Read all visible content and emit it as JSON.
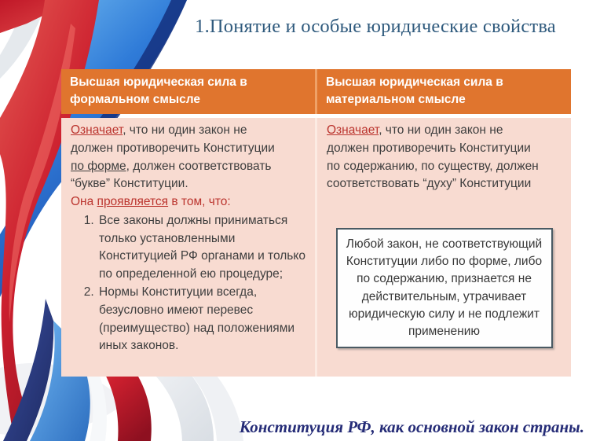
{
  "slide": {
    "title": "1.Понятие и особые юридические свойства",
    "footer": "Конституция РФ, как основной закон страны."
  },
  "colors": {
    "header_bg": "#E0752E",
    "body_bg": "#F8DBD1",
    "accent_red": "#BB342E",
    "title_blue": "#2F5A7D",
    "footer_navy": "#252C77"
  },
  "table": {
    "headers": [
      "Высшая юридическая сила в формальном смысле",
      "Высшая юридическая сила в материальном смысле"
    ],
    "left_cell": {
      "intro_runs": [
        {
          "text": "Означает",
          "style": "red underline"
        },
        {
          "text": ", что ни один закон не должен противоречить Конституции ",
          "style": ""
        },
        {
          "text": "по форме",
          "style": "underline"
        },
        {
          "text": ", должен соответствовать “букве” Конституции.",
          "style": ""
        }
      ],
      "lead_runs": [
        {
          "text": "Она ",
          "style": "red"
        },
        {
          "text": "проявляется",
          "style": "red underline"
        },
        {
          "text": " в том, что:",
          "style": "red"
        }
      ],
      "items": [
        "Все законы должны приниматься только установленными Конституцией РФ органами и только по определенной ею процедуре;",
        "Нормы Конституции всегда, безусловно имеют перевес (преимущество) над положениями иных законов."
      ]
    },
    "right_cell": {
      "intro_runs": [
        {
          "text": "Означает",
          "style": "red underline"
        },
        {
          "text": ", что ни один закон не должен противоречить Конституции по содержанию, по существу,  должен соответствовать “духу” Конституции",
          "style": ""
        }
      ],
      "callout": "Любой закон, не соответствующий Конституции либо по форме, либо по содержанию, признается не действительным,  утрачивает юридическую силу и не подлежит применению"
    }
  },
  "decorations": {
    "ribbon_palette": {
      "red": "#CE2030",
      "dark_red": "#8E1020",
      "bright_blue": "#3E8FE0",
      "navy": "#24356E",
      "light_gray": "#E8EBEF",
      "white": "#FFFFFF"
    }
  }
}
